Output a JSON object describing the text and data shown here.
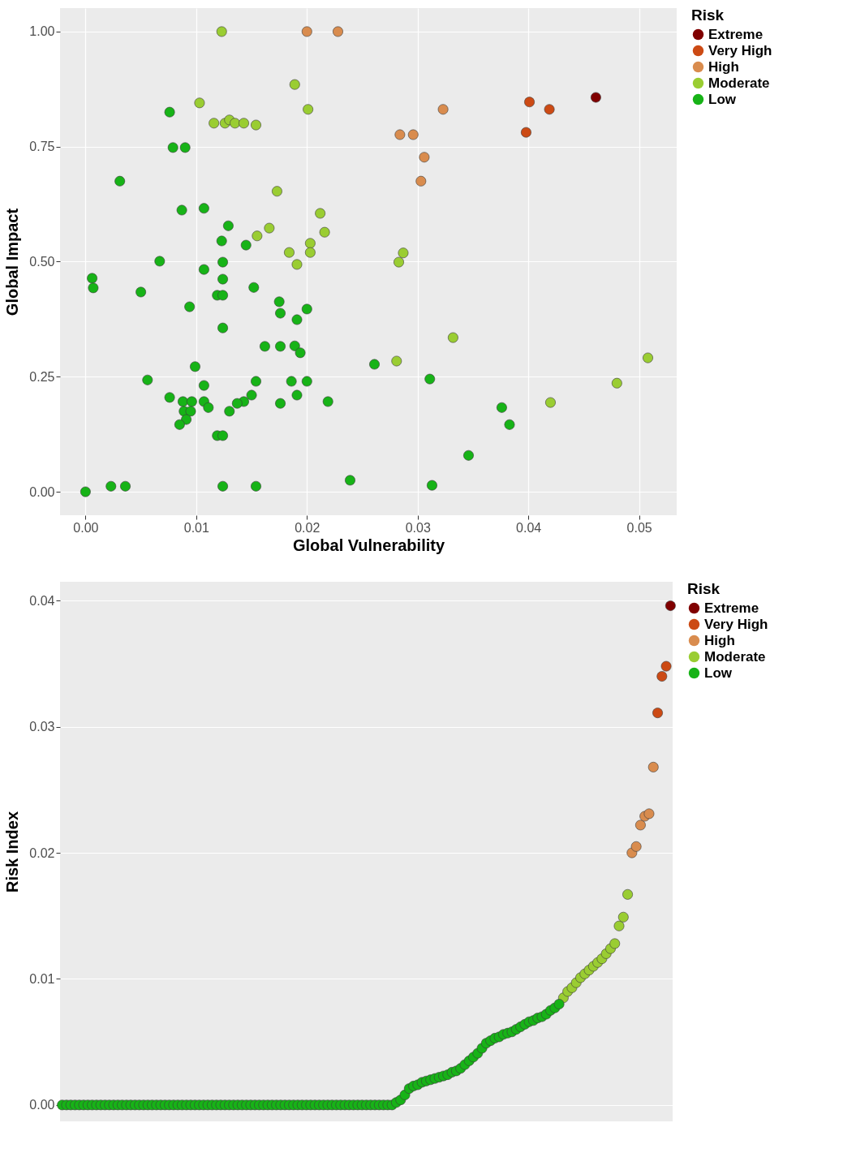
{
  "chart_data": [
    {
      "type": "scatter",
      "xlabel": "Global Vulnerability",
      "ylabel": "Global Impact",
      "legend_title": "Risk",
      "legend": "right",
      "grid": true,
      "marker": "circle",
      "xlim": [
        -0.0023,
        0.0534
      ],
      "ylim": [
        -0.051,
        1.051
      ],
      "xticks": [
        {
          "value": 0,
          "label": "0.00"
        },
        0.01,
        0.02,
        0.03,
        0.04,
        0.05
      ],
      "yticks": [
        {
          "value": 0,
          "label": "0.00"
        },
        0.25,
        {
          "value": 0.5,
          "label": "0.50"
        },
        0.75,
        {
          "value": 1,
          "label": "1.00"
        }
      ],
      "series": [
        {
          "name": "Extreme",
          "color": "#800000",
          "x": [
            0.0461
          ],
          "values": [
            0.857
          ]
        },
        {
          "name": "Very High",
          "color": "#cc4a14",
          "x": [
            0.0401,
            0.0419,
            0.0398
          ],
          "values": [
            0.847,
            0.831,
            0.781
          ]
        },
        {
          "name": "High",
          "color": "#d98c4e",
          "x": [
            0.02,
            0.0228,
            0.0323,
            0.0284,
            0.0296,
            0.0306,
            0.0303
          ],
          "values": [
            1.0,
            1.0,
            0.831,
            0.776,
            0.776,
            0.727,
            0.675
          ]
        },
        {
          "name": "Moderate",
          "color": "#9acd32",
          "x": [
            0.0123,
            0.0189,
            0.0201,
            0.0103,
            0.0116,
            0.0126,
            0.013,
            0.0135,
            0.0143,
            0.0154,
            0.0173,
            0.0212,
            0.0216,
            0.0166,
            0.0155,
            0.0203,
            0.0203,
            0.0184,
            0.0191,
            0.0287,
            0.0283,
            0.0332,
            0.0281,
            0.0508,
            0.048,
            0.042
          ],
          "values": [
            1.0,
            0.885,
            0.831,
            0.845,
            0.801,
            0.801,
            0.808,
            0.801,
            0.801,
            0.797,
            0.653,
            0.605,
            0.564,
            0.573,
            0.556,
            0.54,
            0.52,
            0.52,
            0.494,
            0.519,
            0.499,
            0.335,
            0.284,
            0.291,
            0.236,
            0.194
          ]
        },
        {
          "name": "Low",
          "color": "#17b317",
          "x": [
            0.0076,
            0.0079,
            0.009,
            0.0031,
            0.0087,
            0.0107,
            0.0129,
            0.0123,
            0.0145,
            0.0067,
            0.0107,
            0.0124,
            0.0006,
            0.0007,
            0.005,
            0.0124,
            0.0152,
            0.0119,
            0.0124,
            0.0094,
            0.0175,
            0.0176,
            0.02,
            0.0191,
            0.0124,
            0.0162,
            0.0176,
            0.0189,
            0.0194,
            0.0261,
            0.0099,
            0.0056,
            0.0107,
            0.0154,
            0.0186,
            0.02,
            0.0191,
            0.0219,
            0.0176,
            0.015,
            0.0143,
            0.0137,
            0.013,
            0.0076,
            0.0088,
            0.0096,
            0.0107,
            0.0111,
            0.0089,
            0.0095,
            0.0091,
            0.0085,
            0.0119,
            0.0124,
            0.0,
            0.0023,
            0.0036,
            0.0124,
            0.0154,
            0.0239,
            0.0311,
            0.0376,
            0.0383,
            0.0346,
            0.0313
          ],
          "values": [
            0.825,
            0.748,
            0.748,
            0.675,
            0.612,
            0.616,
            0.578,
            0.545,
            0.536,
            0.501,
            0.483,
            0.499,
            0.464,
            0.443,
            0.434,
            0.462,
            0.444,
            0.427,
            0.427,
            0.402,
            0.413,
            0.388,
            0.397,
            0.374,
            0.356,
            0.316,
            0.316,
            0.317,
            0.302,
            0.277,
            0.272,
            0.243,
            0.231,
            0.24,
            0.24,
            0.24,
            0.21,
            0.196,
            0.192,
            0.21,
            0.196,
            0.192,
            0.175,
            0.205,
            0.196,
            0.196,
            0.196,
            0.183,
            0.175,
            0.175,
            0.157,
            0.146,
            0.122,
            0.122,
            0.0,
            0.012,
            0.012,
            0.012,
            0.012,
            0.025,
            0.245,
            0.183,
            0.146,
            0.079,
            0.014
          ]
        }
      ]
    },
    {
      "type": "scatter",
      "ylabel": "Risk Index",
      "legend_title": "Risk",
      "legend": "right",
      "grid": "y",
      "marker": "circle",
      "tick_labels": "y",
      "ylim": [
        -0.0013,
        0.0415
      ],
      "yticks": [
        {
          "value": 0,
          "label": "0.00"
        },
        {
          "value": 0.01,
          "label": "0.01"
        },
        {
          "value": 0.02,
          "label": "0.02"
        },
        {
          "value": 0.03,
          "label": "0.03"
        },
        {
          "value": 0.04,
          "label": "0.04"
        }
      ],
      "categories": [
        null,
        null,
        null,
        null,
        null,
        null,
        null,
        null,
        null,
        null,
        null,
        null,
        null,
        null,
        null,
        null,
        null,
        null,
        null,
        null,
        null,
        null,
        null,
        null,
        null,
        null,
        null,
        null,
        null,
        null,
        null,
        null,
        null,
        null,
        null,
        null,
        null,
        null,
        null,
        null,
        null,
        null,
        null,
        null,
        null,
        null,
        null,
        null,
        null,
        null,
        null,
        null,
        null,
        null,
        null,
        null,
        null,
        null,
        null,
        null,
        null,
        null,
        null,
        null,
        null,
        null,
        null,
        null,
        null,
        null,
        null,
        null,
        null,
        null,
        null,
        null,
        null,
        null,
        null,
        null,
        null,
        null,
        null,
        null,
        null,
        null,
        null,
        null,
        null,
        null,
        null,
        null,
        null,
        null,
        null,
        null,
        null,
        null,
        null,
        null,
        null,
        null,
        null,
        null,
        null,
        null,
        null,
        null,
        null,
        null,
        null,
        null,
        null,
        null,
        null,
        null,
        null,
        null,
        null,
        null,
        null,
        null,
        null,
        null,
        null,
        null,
        null,
        null,
        null,
        null,
        null,
        null,
        null,
        null,
        null,
        null,
        null,
        null,
        null,
        null,
        null,
        null,
        null
      ],
      "series": [
        {
          "name": "Extreme",
          "color": "#800000",
          "values": [
            null,
            null,
            null,
            null,
            null,
            null,
            null,
            null,
            null,
            null,
            null,
            null,
            null,
            null,
            null,
            null,
            null,
            null,
            null,
            null,
            null,
            null,
            null,
            null,
            null,
            null,
            null,
            null,
            null,
            null,
            null,
            null,
            null,
            null,
            null,
            null,
            null,
            null,
            null,
            null,
            null,
            null,
            null,
            null,
            null,
            null,
            null,
            null,
            null,
            null,
            null,
            null,
            null,
            null,
            null,
            null,
            null,
            null,
            null,
            null,
            null,
            null,
            null,
            null,
            null,
            null,
            null,
            null,
            null,
            null,
            null,
            null,
            null,
            null,
            null,
            null,
            null,
            null,
            null,
            null,
            null,
            null,
            null,
            null,
            null,
            null,
            null,
            null,
            null,
            null,
            null,
            null,
            null,
            null,
            null,
            null,
            null,
            null,
            null,
            null,
            null,
            null,
            null,
            null,
            null,
            null,
            null,
            null,
            null,
            null,
            null,
            null,
            null,
            null,
            null,
            null,
            null,
            null,
            null,
            null,
            null,
            null,
            null,
            null,
            null,
            null,
            null,
            null,
            null,
            null,
            null,
            null,
            null,
            null,
            null,
            null,
            null,
            null,
            null,
            null,
            null,
            null,
            0.0396
          ]
        },
        {
          "name": "Very High",
          "color": "#cc4a14",
          "values": [
            null,
            null,
            null,
            null,
            null,
            null,
            null,
            null,
            null,
            null,
            null,
            null,
            null,
            null,
            null,
            null,
            null,
            null,
            null,
            null,
            null,
            null,
            null,
            null,
            null,
            null,
            null,
            null,
            null,
            null,
            null,
            null,
            null,
            null,
            null,
            null,
            null,
            null,
            null,
            null,
            null,
            null,
            null,
            null,
            null,
            null,
            null,
            null,
            null,
            null,
            null,
            null,
            null,
            null,
            null,
            null,
            null,
            null,
            null,
            null,
            null,
            null,
            null,
            null,
            null,
            null,
            null,
            null,
            null,
            null,
            null,
            null,
            null,
            null,
            null,
            null,
            null,
            null,
            null,
            null,
            null,
            null,
            null,
            null,
            null,
            null,
            null,
            null,
            null,
            null,
            null,
            null,
            null,
            null,
            null,
            null,
            null,
            null,
            null,
            null,
            null,
            null,
            null,
            null,
            null,
            null,
            null,
            null,
            null,
            null,
            null,
            null,
            null,
            null,
            null,
            null,
            null,
            null,
            null,
            null,
            null,
            null,
            null,
            null,
            null,
            null,
            null,
            null,
            null,
            null,
            null,
            null,
            null,
            null,
            null,
            null,
            null,
            null,
            null,
            0.0311,
            0.034,
            0.0348,
            null
          ]
        },
        {
          "name": "High",
          "color": "#d98c4e",
          "values": [
            null,
            null,
            null,
            null,
            null,
            null,
            null,
            null,
            null,
            null,
            null,
            null,
            null,
            null,
            null,
            null,
            null,
            null,
            null,
            null,
            null,
            null,
            null,
            null,
            null,
            null,
            null,
            null,
            null,
            null,
            null,
            null,
            null,
            null,
            null,
            null,
            null,
            null,
            null,
            null,
            null,
            null,
            null,
            null,
            null,
            null,
            null,
            null,
            null,
            null,
            null,
            null,
            null,
            null,
            null,
            null,
            null,
            null,
            null,
            null,
            null,
            null,
            null,
            null,
            null,
            null,
            null,
            null,
            null,
            null,
            null,
            null,
            null,
            null,
            null,
            null,
            null,
            null,
            null,
            null,
            null,
            null,
            null,
            null,
            null,
            null,
            null,
            null,
            null,
            null,
            null,
            null,
            null,
            null,
            null,
            null,
            null,
            null,
            null,
            null,
            null,
            null,
            null,
            null,
            null,
            null,
            null,
            null,
            null,
            null,
            null,
            null,
            null,
            null,
            null,
            null,
            null,
            null,
            null,
            null,
            null,
            null,
            null,
            null,
            null,
            null,
            null,
            null,
            null,
            null,
            null,
            null,
            null,
            0.02,
            0.0205,
            0.0222,
            0.0229,
            0.0231,
            0.0268,
            null,
            null,
            null,
            null
          ]
        },
        {
          "name": "Moderate",
          "color": "#9acd32",
          "values": [
            null,
            null,
            null,
            null,
            null,
            null,
            null,
            null,
            null,
            null,
            null,
            null,
            null,
            null,
            null,
            null,
            null,
            null,
            null,
            null,
            null,
            null,
            null,
            null,
            null,
            null,
            null,
            null,
            null,
            null,
            null,
            null,
            null,
            null,
            null,
            null,
            null,
            null,
            null,
            null,
            null,
            null,
            null,
            null,
            null,
            null,
            null,
            null,
            null,
            null,
            null,
            null,
            null,
            null,
            null,
            null,
            null,
            null,
            null,
            null,
            null,
            null,
            null,
            null,
            null,
            null,
            null,
            null,
            null,
            null,
            null,
            null,
            null,
            null,
            null,
            null,
            null,
            null,
            null,
            null,
            null,
            null,
            null,
            null,
            null,
            null,
            null,
            null,
            null,
            null,
            null,
            null,
            null,
            null,
            null,
            null,
            null,
            null,
            null,
            null,
            null,
            null,
            null,
            null,
            null,
            null,
            null,
            null,
            null,
            null,
            null,
            null,
            null,
            null,
            null,
            null,
            null,
            0.0085,
            0.009,
            0.0093,
            0.0097,
            0.0101,
            0.0104,
            0.0107,
            0.011,
            0.0113,
            0.0116,
            0.012,
            0.0124,
            0.0128,
            0.0142,
            0.0149,
            0.0167,
            null,
            null,
            null,
            null,
            null,
            null,
            null,
            null,
            null,
            null
          ]
        },
        {
          "name": "Low",
          "color": "#17b317",
          "values": [
            0,
            0,
            0,
            0,
            0,
            0,
            0,
            0,
            0,
            0,
            0,
            0,
            0,
            0,
            0,
            0,
            0,
            0,
            0,
            0,
            0,
            0,
            0,
            0,
            0,
            0,
            0,
            0,
            0,
            0,
            0,
            0,
            0,
            0,
            0,
            0,
            0,
            0,
            0,
            0,
            0,
            0,
            0,
            0,
            0,
            0,
            0,
            0,
            0,
            0,
            0,
            0,
            0,
            0,
            0,
            0,
            0,
            0,
            0,
            0,
            0,
            0,
            0,
            0,
            0,
            0,
            0,
            0,
            0,
            0,
            0,
            0,
            0,
            0,
            0,
            0,
            0,
            0.0,
            0.0002,
            0.0004,
            0.0008,
            0.0013,
            0.0015,
            0.0016,
            0.0018,
            0.0019,
            0.002,
            0.0021,
            0.0022,
            0.0023,
            0.0024,
            0.0026,
            0.0027,
            0.0029,
            0.0032,
            0.0035,
            0.0038,
            0.0041,
            0.0045,
            0.0049,
            0.0051,
            0.0053,
            0.0054,
            0.0056,
            0.0057,
            0.0058,
            0.006,
            0.0062,
            0.0064,
            0.0066,
            0.0067,
            0.0069,
            0.007,
            0.0072,
            0.0075,
            0.0077,
            0.008,
            null,
            null,
            null,
            null,
            null,
            null,
            null,
            null,
            null,
            null,
            null,
            null,
            null,
            null,
            null,
            null,
            null,
            null,
            null,
            null,
            null,
            null,
            null,
            null,
            null,
            null
          ]
        }
      ]
    }
  ]
}
